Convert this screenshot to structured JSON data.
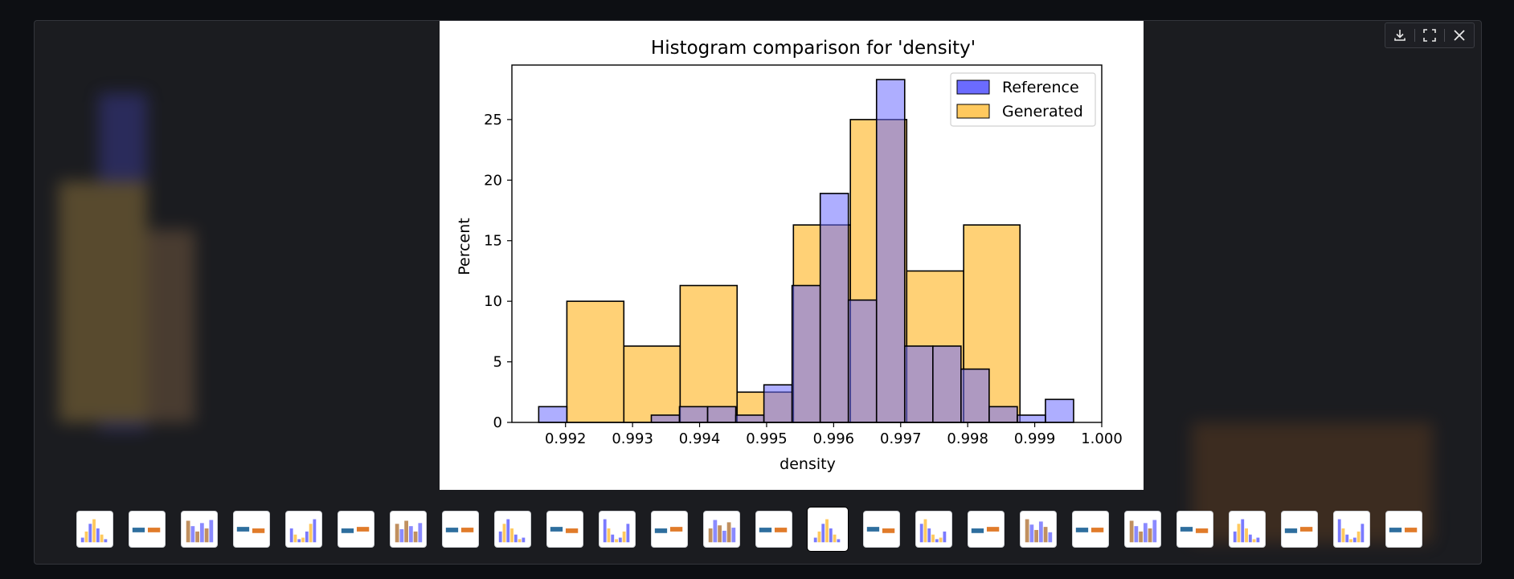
{
  "toolbar": {
    "download_icon": "download-icon",
    "fullscreen_icon": "fullscreen-icon",
    "close_icon": "close-icon"
  },
  "colors": {
    "reference": "#6b6bff",
    "generated": "#ffc95e",
    "overlap": "#bf8f76",
    "background": "#0d0f13"
  },
  "chart_data": {
    "type": "bar",
    "title": "Histogram comparison for 'density'",
    "xlabel": "density",
    "ylabel": "Percent",
    "xlim": [
      0.9912,
      1.0
    ],
    "ylim": [
      0,
      29.5
    ],
    "xticks": [
      "0.992",
      "0.993",
      "0.994",
      "0.995",
      "0.996",
      "0.997",
      "0.998",
      "0.999",
      "1.000"
    ],
    "yticks": [
      "0",
      "5",
      "10",
      "15",
      "20",
      "25"
    ],
    "legend": "top-right",
    "series": [
      {
        "name": "Reference",
        "bins": [
          {
            "x0": 0.9916,
            "x1": 0.99202,
            "y": 1.3
          },
          {
            "x0": 0.99202,
            "x1": 0.99244,
            "y": 0
          },
          {
            "x0": 0.99244,
            "x1": 0.99286,
            "y": 0
          },
          {
            "x0": 0.99286,
            "x1": 0.99328,
            "y": 0
          },
          {
            "x0": 0.99328,
            "x1": 0.9937,
            "y": 0.6
          },
          {
            "x0": 0.9937,
            "x1": 0.99412,
            "y": 1.3
          },
          {
            "x0": 0.99412,
            "x1": 0.99454,
            "y": 1.3
          },
          {
            "x0": 0.99454,
            "x1": 0.99496,
            "y": 0.6
          },
          {
            "x0": 0.99496,
            "x1": 0.99538,
            "y": 3.1
          },
          {
            "x0": 0.99538,
            "x1": 0.9958,
            "y": 11.3
          },
          {
            "x0": 0.9958,
            "x1": 0.99622,
            "y": 18.9
          },
          {
            "x0": 0.99622,
            "x1": 0.99664,
            "y": 10.1
          },
          {
            "x0": 0.99664,
            "x1": 0.99706,
            "y": 28.3
          },
          {
            "x0": 0.99706,
            "x1": 0.99748,
            "y": 6.3
          },
          {
            "x0": 0.99748,
            "x1": 0.9979,
            "y": 6.3
          },
          {
            "x0": 0.9979,
            "x1": 0.99832,
            "y": 4.4
          },
          {
            "x0": 0.99832,
            "x1": 0.99874,
            "y": 1.3
          },
          {
            "x0": 0.99874,
            "x1": 0.99916,
            "y": 0.6
          },
          {
            "x0": 0.99916,
            "x1": 0.99958,
            "y": 1.9
          }
        ]
      },
      {
        "name": "Generated",
        "bins": [
          {
            "x0": 0.99202,
            "x1": 0.99287,
            "y": 10.0
          },
          {
            "x0": 0.99287,
            "x1": 0.99371,
            "y": 6.3
          },
          {
            "x0": 0.99371,
            "x1": 0.99456,
            "y": 11.3
          },
          {
            "x0": 0.99456,
            "x1": 0.9954,
            "y": 2.5
          },
          {
            "x0": 0.9954,
            "x1": 0.99625,
            "y": 16.3
          },
          {
            "x0": 0.99625,
            "x1": 0.99709,
            "y": 25.0
          },
          {
            "x0": 0.99709,
            "x1": 0.99794,
            "y": 12.5
          },
          {
            "x0": 0.99794,
            "x1": 0.99878,
            "y": 16.3
          }
        ]
      }
    ]
  }
}
